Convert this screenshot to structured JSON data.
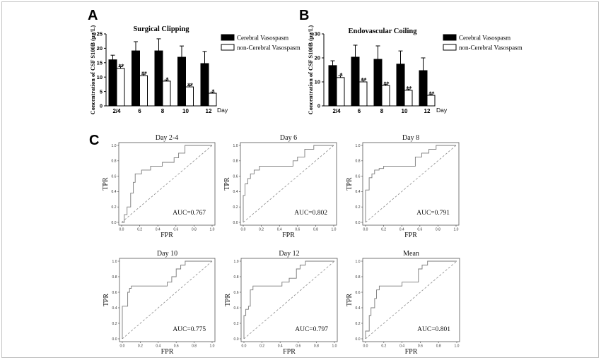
{
  "figure": {
    "panels": [
      {
        "label": "A"
      },
      {
        "label": "B"
      },
      {
        "label": "C"
      }
    ]
  },
  "chart_data": [
    {
      "type": "bar",
      "title": "Surgical Clipping",
      "xlabel": "Day",
      "ylabel": "Concentration of CSF S100B (μg/L)",
      "categories": [
        "2/4",
        "6",
        "8",
        "10",
        "12"
      ],
      "ylim": [
        0,
        25
      ],
      "yticks": [
        0,
        5,
        10,
        15,
        20,
        25
      ],
      "legend_position": "right",
      "series": [
        {
          "name": "Cerebral Vasospasm",
          "color": "#000000",
          "values": [
            16.0,
            19.1,
            19.1,
            16.9,
            14.7
          ],
          "error": [
            1.6,
            3.2,
            4.2,
            3.9,
            4.2
          ]
        },
        {
          "name": "non-Cerebral Vasospasm",
          "color": "#ffffff",
          "values": [
            13.0,
            10.5,
            8.6,
            6.6,
            4.4
          ],
          "error": [
            0.6,
            0.5,
            0.4,
            0.4,
            0.4
          ]
        }
      ],
      "significance": [
        "**",
        "**",
        "*",
        "**",
        "*"
      ]
    },
    {
      "type": "bar",
      "title": "Endovascular Coiling",
      "xlabel": "Day",
      "ylabel": "Concentration of CSF S100B (μg/L)",
      "categories": [
        "2/4",
        "6",
        "8",
        "10",
        "12"
      ],
      "ylim": [
        0,
        30
      ],
      "yticks": [
        0,
        10,
        20,
        30
      ],
      "legend_position": "right",
      "series": [
        {
          "name": "Cerebral Vasospasm",
          "color": "#000000",
          "values": [
            16.8,
            20.3,
            19.4,
            17.4,
            14.7
          ],
          "error": [
            2.0,
            5.0,
            5.6,
            5.5,
            5.3
          ]
        },
        {
          "name": "non-Cerebral Vasospasm",
          "color": "#ffffff",
          "values": [
            11.8,
            10.0,
            8.5,
            6.5,
            4.4
          ],
          "error": [
            0.8,
            0.6,
            0.5,
            0.5,
            0.5
          ]
        }
      ],
      "significance": [
        "*",
        "**",
        "**",
        "**",
        "**"
      ]
    },
    {
      "type": "line",
      "title": "Day 2-4",
      "xlabel": "FPR",
      "ylabel": "TPR",
      "xlim": [
        0,
        1
      ],
      "ylim": [
        0,
        1
      ],
      "ticks": [
        "0.0",
        "0.2",
        "0.4",
        "0.6",
        "0.8",
        "1.0"
      ],
      "annotation": "AUC=0.767",
      "reference_line": {
        "x": [
          0,
          1
        ],
        "y": [
          0,
          1
        ],
        "dashed": true
      },
      "series": [
        {
          "x": [
            0,
            0.03,
            0.03,
            0.06,
            0.06,
            0.1,
            0.1,
            0.13,
            0.13,
            0.15,
            0.15,
            0.22,
            0.22,
            0.32,
            0.32,
            0.45,
            0.45,
            0.58,
            0.58,
            0.63,
            0.63,
            0.7,
            0.7,
            1.0
          ],
          "y": [
            0,
            0,
            0.1,
            0.1,
            0.2,
            0.2,
            0.38,
            0.38,
            0.52,
            0.52,
            0.63,
            0.63,
            0.68,
            0.68,
            0.73,
            0.73,
            0.78,
            0.78,
            0.84,
            0.84,
            0.9,
            0.9,
            1.0,
            1.0
          ]
        }
      ]
    },
    {
      "type": "line",
      "title": "Day 6",
      "xlabel": "FPR",
      "ylabel": "TPR",
      "xlim": [
        0,
        1
      ],
      "ylim": [
        0,
        1
      ],
      "ticks": [
        "0.0",
        "0.2",
        "0.4",
        "0.6",
        "0.8",
        "1.0"
      ],
      "annotation": "AUC=0.802",
      "reference_line": {
        "x": [
          0,
          1
        ],
        "y": [
          0,
          1
        ],
        "dashed": true
      },
      "series": [
        {
          "x": [
            0,
            0,
            0.02,
            0.02,
            0.05,
            0.05,
            0.08,
            0.08,
            0.12,
            0.12,
            0.18,
            0.18,
            0.55,
            0.55,
            0.6,
            0.6,
            0.68,
            0.68,
            0.78,
            0.78,
            1.0
          ],
          "y": [
            0,
            0.35,
            0.35,
            0.5,
            0.5,
            0.57,
            0.57,
            0.63,
            0.63,
            0.68,
            0.68,
            0.73,
            0.73,
            0.8,
            0.8,
            0.85,
            0.85,
            0.95,
            0.95,
            1.0,
            1.0
          ]
        }
      ]
    },
    {
      "type": "line",
      "title": "Day 8",
      "xlabel": "FPR",
      "ylabel": "TPR",
      "xlim": [
        0,
        1
      ],
      "ylim": [
        0,
        1
      ],
      "ticks": [
        "0.0",
        "0.2",
        "0.4",
        "0.6",
        "0.8",
        "1.0"
      ],
      "annotation": "AUC=0.791",
      "reference_line": {
        "x": [
          0,
          1
        ],
        "y": [
          0,
          1
        ],
        "dashed": true
      },
      "series": [
        {
          "x": [
            0,
            0,
            0.04,
            0.04,
            0.07,
            0.07,
            0.1,
            0.1,
            0.15,
            0.15,
            0.2,
            0.2,
            0.55,
            0.55,
            0.62,
            0.62,
            0.7,
            0.7,
            0.78,
            0.78,
            1.0
          ],
          "y": [
            0,
            0.42,
            0.42,
            0.58,
            0.58,
            0.63,
            0.63,
            0.68,
            0.68,
            0.7,
            0.7,
            0.73,
            0.73,
            0.85,
            0.85,
            0.9,
            0.9,
            0.95,
            0.95,
            1.0,
            1.0
          ]
        }
      ]
    },
    {
      "type": "line",
      "title": "Day 10",
      "xlabel": "FPR",
      "ylabel": "TPR",
      "xlim": [
        0,
        1
      ],
      "ylim": [
        0,
        1
      ],
      "ticks": [
        "0.0",
        "0.2",
        "0.4",
        "0.6",
        "0.8",
        "1.0"
      ],
      "annotation": "AUC=0.775",
      "reference_line": {
        "x": [
          0,
          1
        ],
        "y": [
          0,
          1
        ],
        "dashed": true
      },
      "series": [
        {
          "x": [
            0,
            0,
            0.06,
            0.06,
            0.08,
            0.08,
            0.1,
            0.1,
            0.5,
            0.5,
            0.55,
            0.55,
            0.6,
            0.6,
            0.65,
            0.65,
            0.7,
            0.7,
            1.0
          ],
          "y": [
            0,
            0.42,
            0.42,
            0.6,
            0.6,
            0.65,
            0.65,
            0.68,
            0.68,
            0.73,
            0.73,
            0.8,
            0.8,
            0.9,
            0.9,
            0.95,
            0.95,
            1.0,
            1.0
          ]
        }
      ]
    },
    {
      "type": "line",
      "title": "Day 12",
      "xlabel": "FPR",
      "ylabel": "TPR",
      "xlim": [
        0,
        1
      ],
      "ylim": [
        0,
        1
      ],
      "ticks": [
        "0.0",
        "0.2",
        "0.4",
        "0.6",
        "0.8",
        "1.0"
      ],
      "annotation": "AUC=0.797",
      "reference_line": {
        "x": [
          0,
          1
        ],
        "y": [
          0,
          1
        ],
        "dashed": true
      },
      "series": [
        {
          "x": [
            0,
            0,
            0.02,
            0.02,
            0.05,
            0.05,
            0.07,
            0.07,
            0.1,
            0.1,
            0.42,
            0.42,
            0.5,
            0.5,
            0.58,
            0.58,
            0.62,
            0.62,
            0.68,
            0.68,
            1.0
          ],
          "y": [
            0,
            0.3,
            0.3,
            0.38,
            0.38,
            0.42,
            0.42,
            0.63,
            0.63,
            0.68,
            0.68,
            0.73,
            0.73,
            0.78,
            0.78,
            0.9,
            0.9,
            0.95,
            0.95,
            1.0,
            1.0
          ]
        }
      ]
    },
    {
      "type": "line",
      "title": "Mean",
      "xlabel": "FPR",
      "ylabel": "TPR",
      "xlim": [
        0,
        1
      ],
      "ylim": [
        0,
        1
      ],
      "ticks": [
        "0.0",
        "0.2",
        "0.4",
        "0.6",
        "0.8",
        "1.0"
      ],
      "annotation": "AUC=0.801",
      "reference_line": {
        "x": [
          0,
          1
        ],
        "y": [
          0,
          1
        ],
        "dashed": true
      },
      "series": [
        {
          "x": [
            0,
            0,
            0.04,
            0.04,
            0.06,
            0.06,
            0.1,
            0.1,
            0.12,
            0.12,
            0.15,
            0.15,
            0.4,
            0.4,
            0.58,
            0.58,
            0.62,
            0.62,
            0.68,
            0.68,
            1.0
          ],
          "y": [
            0,
            0.1,
            0.1,
            0.3,
            0.3,
            0.4,
            0.4,
            0.52,
            0.52,
            0.63,
            0.63,
            0.68,
            0.68,
            0.73,
            0.73,
            0.9,
            0.9,
            0.95,
            0.95,
            1.0,
            1.0
          ]
        }
      ]
    }
  ]
}
